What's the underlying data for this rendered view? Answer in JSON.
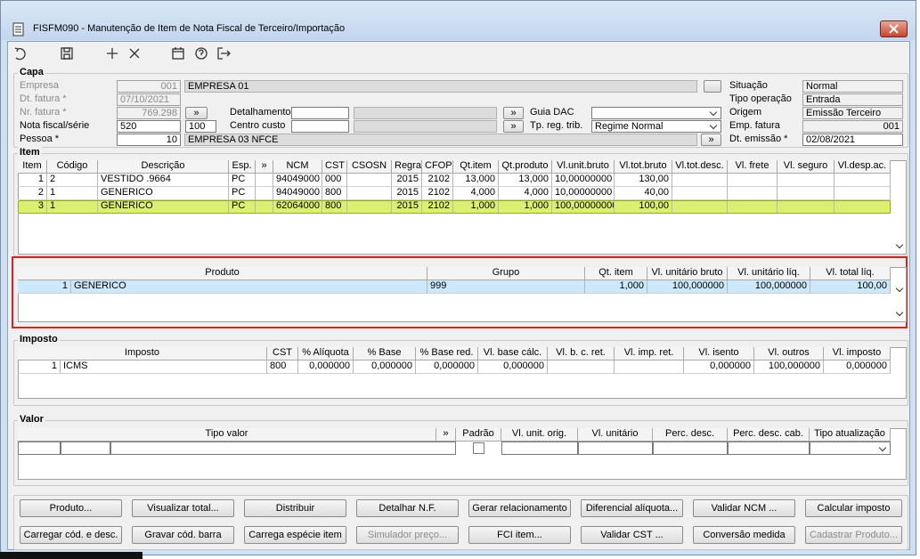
{
  "window": {
    "title": "FISFM090 - Manutenção de Item de Nota Fiscal de Terceiro/Importação"
  },
  "link_button": "»",
  "capa": {
    "title": "Capa",
    "empresa": {
      "label": "Empresa",
      "code": "001",
      "name": "EMPRESA 01"
    },
    "dt_fatura": {
      "label": "Dt. fatura *",
      "value": "07/10/2021"
    },
    "nr_fatura": {
      "label": "Nr. fatura *",
      "value": "769.298"
    },
    "nota_fiscal": {
      "label": "Nota fiscal/série",
      "value": "520",
      "serie": "100"
    },
    "pessoa": {
      "label": "Pessoa *",
      "code": "10",
      "name": "EMPRESA 03 NFCE"
    },
    "detalhamento": {
      "label": "Detalhamento"
    },
    "centro_custo": {
      "label": "Centro custo"
    },
    "guia_dac": {
      "label": "Guia DAC"
    },
    "tp_reg_trib": {
      "label": "Tp. reg. trib.",
      "value": "Regime Normal"
    },
    "situacao": {
      "label": "Situação",
      "value": "Normal"
    },
    "tipo_operacao": {
      "label": "Tipo operação",
      "value": "Entrada"
    },
    "origem": {
      "label": "Origem",
      "value": "Emissão Terceiro"
    },
    "emp_fatura": {
      "label": "Emp. fatura",
      "value": "001"
    },
    "dt_emissao": {
      "label": "Dt. emissão *",
      "value": "02/08/2021"
    }
  },
  "item": {
    "title": "Item",
    "columns": [
      "Item",
      "Código",
      "Descrição",
      "Esp.",
      "»",
      "NCM",
      "CST",
      "CSOSN",
      "Regra",
      "CFOP",
      "Qt.item",
      "Qt.produto",
      "Vl.unit.bruto",
      "Vl.tot.bruto",
      "Vl.tot.desc.",
      "Vl. frete",
      "Vl. seguro",
      "Vl.desp.ac."
    ],
    "rows": [
      [
        "1",
        "2",
        "VESTIDO .9664",
        "PC",
        null,
        "94049000",
        "000",
        null,
        "2015",
        "2102",
        "13,000",
        "13,000",
        "10,00000000",
        "130,00",
        null,
        null,
        null,
        null
      ],
      [
        "2",
        "1",
        "GENERICO",
        "PC",
        null,
        "94049000",
        "800",
        null,
        "2015",
        "2102",
        "4,000",
        "4,000",
        "10,00000000",
        "40,00",
        null,
        null,
        null,
        null
      ],
      [
        "3",
        "1",
        "GENERICO",
        "PC",
        null,
        "62064000",
        "800",
        null,
        "2015",
        "2102",
        "1,000",
        "1,000",
        "100,00000000",
        "100,00",
        null,
        null,
        null,
        null
      ]
    ],
    "selected_row": 2
  },
  "produto": {
    "columns": [
      "Produto",
      "Grupo",
      "Qt. item",
      "Vl. unitário bruto",
      "Vl. unitário líq.",
      "Vl. total líq."
    ],
    "rows": [
      [
        "1",
        "GENERICO",
        "999",
        "1,000",
        "100,000000",
        "100,000000",
        "100,00"
      ]
    ]
  },
  "imposto": {
    "title": "Imposto",
    "columns": [
      "Imposto",
      "CST",
      "% Alíquota",
      "% Base",
      "% Base red.",
      "Vl. base cálc.",
      "Vl. b. c. ret.",
      "Vl. imp. ret.",
      "Vl. isento",
      "Vl. outros",
      "Vl. imposto"
    ],
    "rows": [
      [
        "1",
        "ICMS",
        "800",
        "0,000000",
        "0,000000",
        "0,000000",
        "0,000000",
        null,
        null,
        "0,000000",
        "100,000000",
        "0,000000"
      ]
    ]
  },
  "valor": {
    "title": "Valor",
    "columns": [
      "Tipo valor",
      "»",
      "Padrão",
      "Vl. unit. orig.",
      "Vl. unitário",
      "Perc. desc.",
      "Perc. desc. cab.",
      "Tipo atualização"
    ]
  },
  "buttons": [
    {
      "label": "Produto...",
      "enabled": true
    },
    {
      "label": "Visualizar total...",
      "enabled": true
    },
    {
      "label": "Distribuir",
      "enabled": true
    },
    {
      "label": "Detalhar N.F.",
      "enabled": true
    },
    {
      "label": "Gerar relacionamento",
      "enabled": true
    },
    {
      "label": "Diferencial alíquota...",
      "enabled": true
    },
    {
      "label": "Validar NCM ...",
      "enabled": true
    },
    {
      "label": "Calcular imposto",
      "enabled": true
    },
    {
      "label": "Carregar cód. e desc.",
      "enabled": true
    },
    {
      "label": "Gravar cód. barra",
      "enabled": true
    },
    {
      "label": "Carrega espécie item",
      "enabled": true
    },
    {
      "label": "Simulador preço...",
      "enabled": false
    },
    {
      "label": "FCI item...",
      "enabled": true
    },
    {
      "label": "Validar CST ...",
      "enabled": true
    },
    {
      "label": "Conversão medida",
      "enabled": true
    },
    {
      "label": "Cadastrar Produto...",
      "enabled": false
    }
  ]
}
